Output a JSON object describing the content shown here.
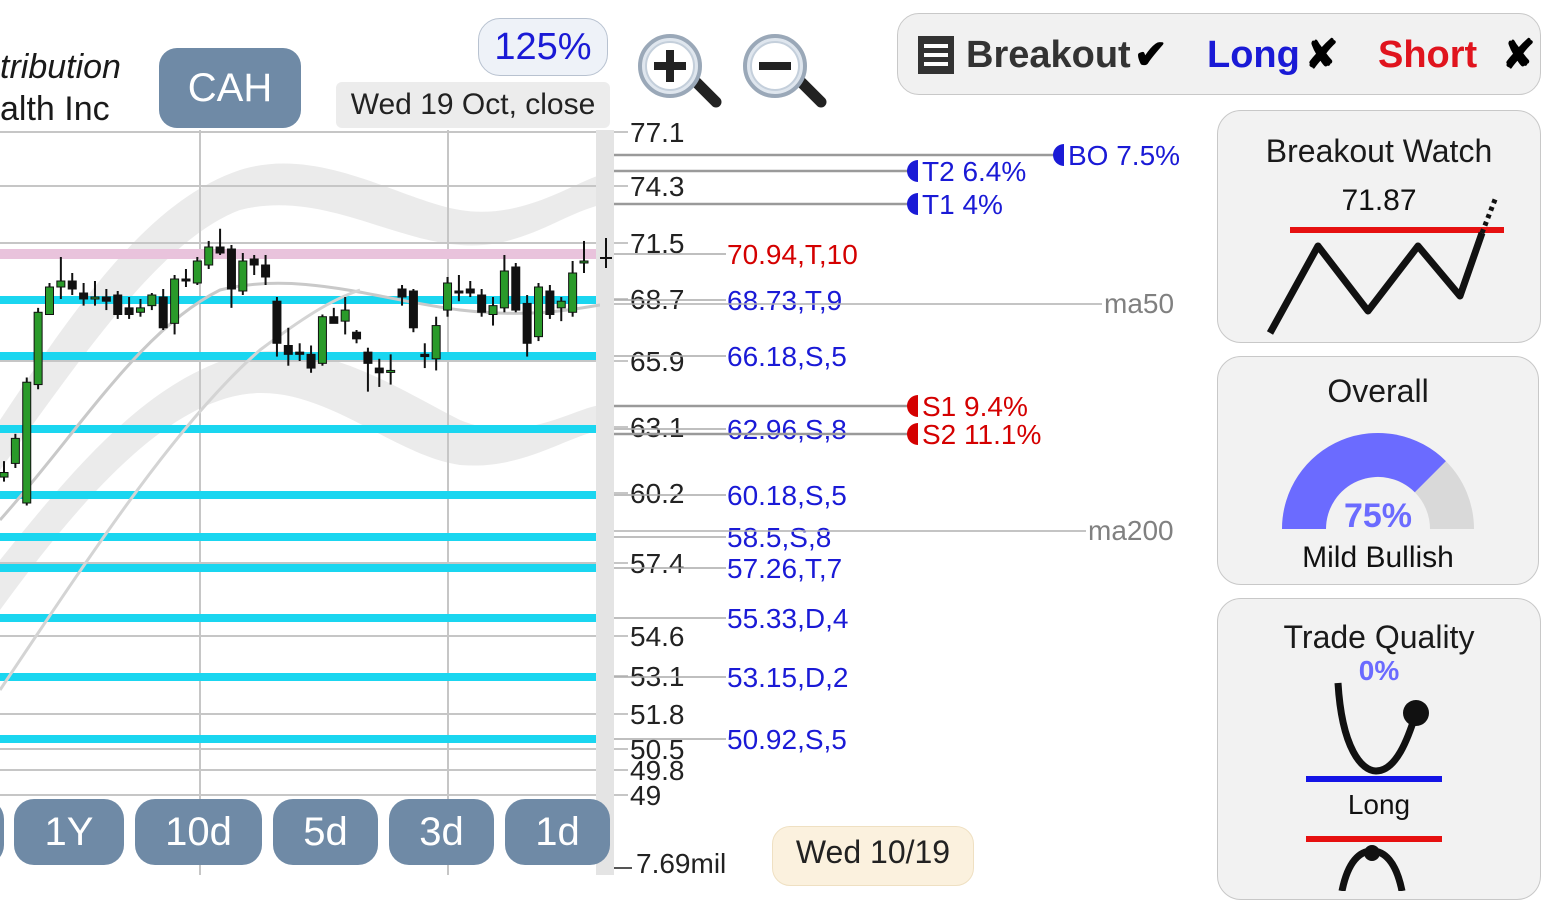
{
  "company_name": {
    "line1": "tribution",
    "line2": "alth Inc"
  },
  "ticker": "CAH",
  "zoom_level": "125%",
  "chart_date": "Wed 19 Oct, close",
  "zoom_in_icon": "zoom-in-magnifier-icon",
  "zoom_out_icon": "zoom-out-magnifier-icon",
  "status_bar": {
    "menu_icon": "list-menu-icon",
    "breakout_label": "Breakout",
    "breakout_mark": "✔",
    "long_label": "Long",
    "long_mark": "✘",
    "short_label": "Short",
    "short_mark": "✘"
  },
  "colors": {
    "support_line": "#1ad6f0",
    "resistance_band": "#e9c3dc",
    "candle_up": "#2a9a2a",
    "candle_down": "#111111",
    "target_blue": "#1a1ad6",
    "stop_red": "#d40000",
    "gauge_fill": "#6b6bff",
    "range_button": "#6f8aa6"
  },
  "chart_data": {
    "type": "candlestick",
    "price_ticks": [
      "77.1",
      "74.3",
      "71.5",
      "68.7",
      "65.9",
      "63.1",
      "60.2",
      "57.4",
      "54.6",
      "53.1",
      "51.8",
      "50.5",
      "49.8",
      "49"
    ],
    "level_labels": [
      {
        "text": "70.94,T,10",
        "kind": "resistance"
      },
      {
        "text": "68.73,T,9",
        "kind": "support"
      },
      {
        "text": "66.18,S,5",
        "kind": "support"
      },
      {
        "text": "62.96,S,8",
        "kind": "support"
      },
      {
        "text": "60.18,S,5",
        "kind": "support"
      },
      {
        "text": "58.5,S,8",
        "kind": "support"
      },
      {
        "text": "57.26,T,7",
        "kind": "support"
      },
      {
        "text": "55.33,D,4",
        "kind": "support"
      },
      {
        "text": "53.15,D,2",
        "kind": "support"
      },
      {
        "text": "50.92,S,5",
        "kind": "support"
      }
    ],
    "targets": [
      {
        "text": "BO 7.5%",
        "kind": "breakout"
      },
      {
        "text": "T2 6.4%",
        "kind": "target"
      },
      {
        "text": "T1 4%",
        "kind": "target"
      },
      {
        "text": "S1 9.4%",
        "kind": "stop"
      },
      {
        "text": "S2 11.1%",
        "kind": "stop"
      }
    ],
    "moving_averages": [
      "ma50",
      "ma200"
    ],
    "volume_label": "7.69mil",
    "candles_ohlc": [
      [
        60.9,
        61.6,
        60.7,
        61.1
      ],
      [
        61.5,
        62.8,
        61.3,
        62.6
      ],
      [
        59.8,
        65.2,
        59.7,
        65.0
      ],
      [
        64.9,
        68.3,
        64.7,
        68.1
      ],
      [
        68.0,
        69.5,
        68.0,
        69.3
      ],
      [
        69.3,
        70.8,
        68.7,
        69.6
      ],
      [
        69.6,
        70.0,
        68.9,
        69.2
      ],
      [
        69.0,
        69.5,
        68.4,
        68.7
      ],
      [
        68.8,
        69.6,
        68.4,
        68.8
      ],
      [
        68.8,
        69.2,
        68.2,
        68.6
      ],
      [
        68.9,
        69.1,
        67.8,
        68.0
      ],
      [
        68.3,
        68.8,
        67.8,
        68.0
      ],
      [
        68.1,
        68.7,
        67.9,
        68.3
      ],
      [
        68.4,
        69.0,
        68.2,
        68.9
      ],
      [
        68.8,
        69.2,
        67.3,
        67.4
      ],
      [
        67.6,
        69.9,
        67.1,
        69.7
      ],
      [
        69.7,
        70.2,
        69.3,
        69.6
      ],
      [
        69.5,
        70.8,
        69.4,
        70.6
      ],
      [
        70.4,
        71.6,
        70.2,
        71.3
      ],
      [
        71.3,
        72.2,
        70.9,
        71.0
      ],
      [
        71.2,
        71.4,
        68.3,
        69.2
      ],
      [
        69.1,
        71.0,
        68.9,
        70.6
      ],
      [
        70.7,
        70.9,
        69.9,
        70.4
      ],
      [
        70.4,
        70.9,
        69.4,
        69.8
      ],
      [
        68.6,
        68.8,
        66.1,
        66.7
      ],
      [
        66.6,
        67.4,
        65.7,
        66.2
      ],
      [
        66.3,
        66.7,
        65.9,
        66.2
      ],
      [
        66.2,
        66.6,
        65.4,
        65.6
      ],
      [
        65.8,
        68.0,
        65.7,
        67.9
      ],
      [
        67.9,
        68.3,
        67.6,
        67.6
      ],
      [
        67.7,
        68.8,
        67.1,
        68.2
      ],
      [
        67.2,
        67.3,
        66.7,
        66.9
      ],
      [
        66.3,
        66.5,
        64.6,
        65.8
      ],
      [
        65.6,
        66.0,
        64.8,
        65.4
      ],
      [
        65.5,
        66.2,
        64.9,
        65.5
      ],
      [
        69.2,
        69.4,
        68.4,
        68.8
      ],
      [
        69.1,
        69.2,
        67.2,
        67.4
      ],
      [
        66.2,
        66.7,
        65.6,
        66.1
      ],
      [
        66.0,
        67.9,
        65.5,
        67.5
      ],
      [
        68.2,
        69.8,
        67.9,
        69.5
      ],
      [
        69.1,
        69.9,
        68.6,
        69.0
      ],
      [
        69.2,
        69.6,
        68.8,
        69.0
      ],
      [
        68.9,
        69.2,
        67.9,
        68.1
      ],
      [
        68.0,
        68.8,
        67.5,
        68.4
      ],
      [
        68.3,
        70.9,
        68.1,
        70.1
      ],
      [
        70.3,
        70.5,
        68.1,
        68.2
      ],
      [
        68.5,
        68.9,
        66.1,
        66.7
      ],
      [
        67.0,
        69.5,
        66.8,
        69.3
      ],
      [
        69.1,
        69.4,
        67.8,
        68.0
      ],
      [
        68.3,
        68.8,
        67.7,
        68.6
      ],
      [
        68.1,
        70.6,
        67.9,
        70.0
      ],
      [
        70.5,
        71.6,
        70.0,
        70.6
      ]
    ],
    "range_buttons": [
      "1Y",
      "10d",
      "5d",
      "3d",
      "1d"
    ],
    "bottom_date": "Wed 10/19"
  },
  "breakout_watch": {
    "title": "Breakout Watch",
    "value": "71.87"
  },
  "overall": {
    "title": "Overall",
    "percent": "75%",
    "percent_value": 75,
    "sentiment": "Mild Bullish"
  },
  "trade_quality": {
    "title": "Trade Quality",
    "percent": "0%",
    "long_label": "Long"
  }
}
